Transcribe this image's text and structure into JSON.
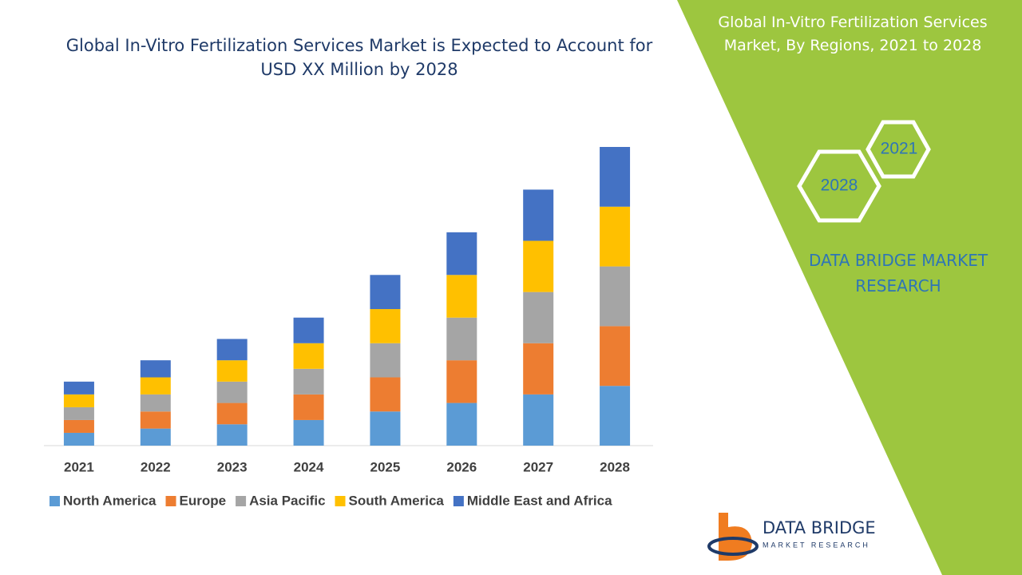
{
  "chart_data": {
    "type": "stacked-bar",
    "title": "Global In-Vitro Fertilization Services Market is Expected to Account for USD XX Million by 2028",
    "categories": [
      "2021",
      "2022",
      "2023",
      "2024",
      "2025",
      "2026",
      "2027",
      "2028"
    ],
    "series": [
      {
        "name": "North America",
        "color": "#5b9bd5",
        "values": [
          3,
          4,
          5,
          6,
          8,
          10,
          12,
          14
        ]
      },
      {
        "name": "Europe",
        "color": "#ed7d31",
        "values": [
          3,
          4,
          5,
          6,
          8,
          10,
          12,
          14
        ]
      },
      {
        "name": "Asia Pacific",
        "color": "#a5a5a5",
        "values": [
          3,
          4,
          5,
          6,
          8,
          10,
          12,
          14
        ]
      },
      {
        "name": "South America",
        "color": "#ffc000",
        "values": [
          3,
          4,
          5,
          6,
          8,
          10,
          12,
          14
        ]
      },
      {
        "name": "Middle East and Africa",
        "color": "#4472c4",
        "values": [
          3,
          4,
          5,
          6,
          8,
          10,
          12,
          14
        ]
      }
    ],
    "legend": "bottom"
  },
  "sidebar": {
    "title": "Global In-Vitro Fertilization Services Market, By Regions, 2021 to 2028",
    "hexagons": [
      "2021",
      "2028"
    ],
    "brand": "DATA BRIDGE MARKET RESEARCH"
  },
  "logo": {
    "name": "DATA BRIDGE",
    "tagline": "MARKET RESEARCH"
  }
}
